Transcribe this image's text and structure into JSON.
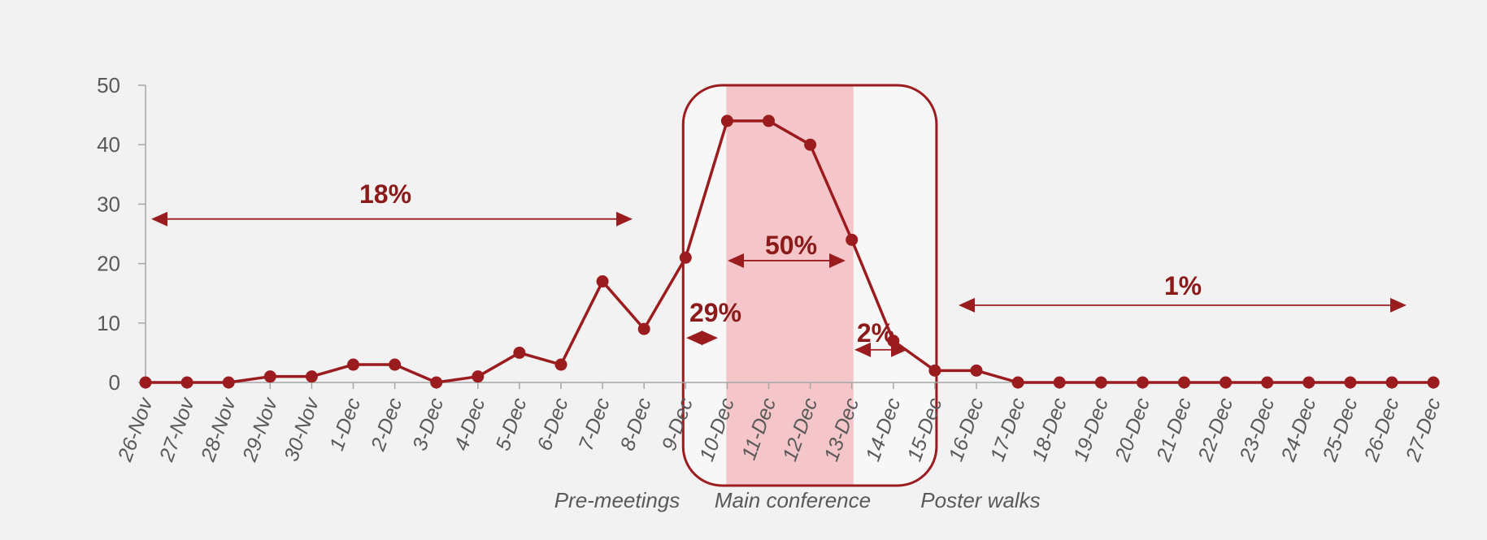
{
  "colors": {
    "line": "#9b1c1f",
    "axis": "#a6a6a6",
    "highlight": "#f4c6c9",
    "box_fill": "#f7f7f7",
    "background": "#f2f2f2",
    "text": "#595959",
    "annotation": "#8b1a1a"
  },
  "chart_data": {
    "type": "line",
    "title": "",
    "xlabel": "",
    "ylabel": "",
    "ylim": [
      0,
      50
    ],
    "yticks": [
      0,
      10,
      20,
      30,
      40,
      50
    ],
    "grid": false,
    "legend": "none",
    "categories": [
      "26-Nov",
      "27-Nov",
      "28-Nov",
      "29-Nov",
      "30-Nov",
      "1-Dec",
      "2-Dec",
      "3-Dec",
      "4-Dec",
      "5-Dec",
      "6-Dec",
      "7-Dec",
      "8-Dec",
      "9-Dec",
      "10-Dec",
      "11-Dec",
      "12-Dec",
      "13-Dec",
      "14-Dec",
      "15-Dec",
      "16-Dec",
      "17-Dec",
      "18-Dec",
      "19-Dec",
      "20-Dec",
      "21-Dec",
      "22-Dec",
      "23-Dec",
      "24-Dec",
      "25-Dec",
      "26-Dec",
      "27-Dec"
    ],
    "series": [
      {
        "values": [
          0,
          0,
          0,
          1,
          1,
          3,
          3,
          0,
          1,
          5,
          3,
          17,
          9,
          21,
          44,
          44,
          40,
          24,
          7,
          2,
          2,
          0,
          0,
          0,
          0,
          0,
          0,
          0,
          0,
          0,
          0,
          0
        ]
      }
    ],
    "highlight_range": [
      "10-Dec",
      "13-Dec"
    ],
    "box_range": [
      "9-Dec",
      "15-Dec"
    ],
    "annotations": [
      {
        "text": "18%",
        "from": "26-Nov",
        "to": "8-Dec",
        "y": 27.5
      },
      {
        "text": "29%",
        "from": "9-Dec",
        "to": "10-Dec",
        "y": 7.5
      },
      {
        "text": "50%",
        "from": "10-Dec",
        "to": "13-Dec",
        "y": 20.5
      },
      {
        "text": "2%",
        "from": "13-Dec",
        "to": "14-Dec",
        "y": 5.5
      },
      {
        "text": "1%",
        "from": "16-Dec",
        "to": "26-Dec",
        "y": 13
      }
    ],
    "phase_labels": [
      {
        "text": "Pre-meetings",
        "at": "8-Dec"
      },
      {
        "text": "Main conference",
        "at": "11-Dec"
      },
      {
        "text": "Poster walks",
        "at": "16-Dec"
      }
    ]
  }
}
